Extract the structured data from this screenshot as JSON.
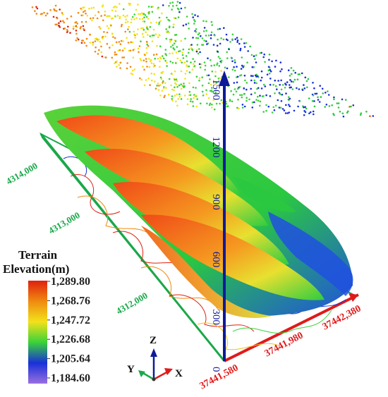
{
  "chart_data": {
    "type": "3d-surface",
    "legend": {
      "title_line1": "Terrain",
      "title_line2": "Elevation(m)",
      "values": [
        "1,289.80",
        "1,268.76",
        "1,247.72",
        "1,226.68",
        "1,205.64",
        "1,184.60"
      ],
      "colors": [
        "#e02010",
        "#f08a10",
        "#f2e21a",
        "#3ad23a",
        "#1830d8",
        "#9a70e0"
      ]
    },
    "northing_labels": [
      "4314,000",
      "4313,000",
      "4312,000"
    ],
    "easting_labels": [
      "37441,580",
      "37441,980",
      "37442,380"
    ],
    "z_labels": [
      "0",
      "300",
      "600",
      "900",
      "1200",
      "1500"
    ],
    "axes_triad": {
      "z": "Z",
      "y": "Y",
      "x": "X"
    },
    "colors": {
      "northing": "#1aa84a",
      "easting": "#e01a1a",
      "z_axis": "#0f1a9a"
    }
  }
}
